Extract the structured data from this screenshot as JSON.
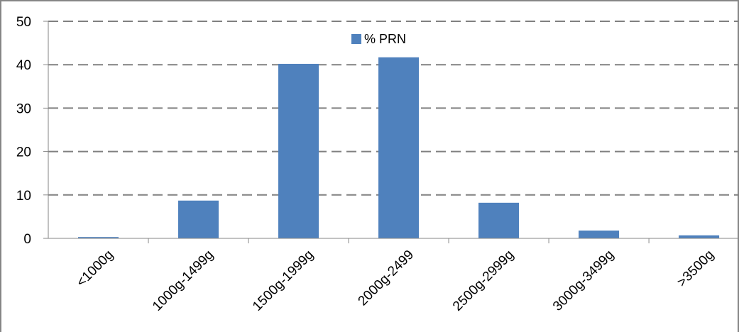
{
  "chart_data": {
    "type": "bar",
    "categories": [
      "<1000g",
      "1000g-1499g",
      "1500g-1999g",
      "2000g-2499",
      "2500g-2999g",
      "3000g-3499g",
      ">3500g"
    ],
    "series": [
      {
        "name": "% PRN",
        "values": [
          0.3,
          8.7,
          40.2,
          41.7,
          8.2,
          1.8,
          0.7
        ]
      }
    ],
    "title": "",
    "xlabel": "",
    "ylabel": "",
    "ylim": [
      0,
      50
    ],
    "yticks": [
      "0",
      "10",
      "20",
      "30",
      "40",
      "50"
    ],
    "grid": "horizontal dashed",
    "legend_position": "top-center"
  },
  "colors": {
    "bar": "#4f81bd",
    "gridline": "#808080",
    "axis": "#868686",
    "frame": "#868686"
  }
}
